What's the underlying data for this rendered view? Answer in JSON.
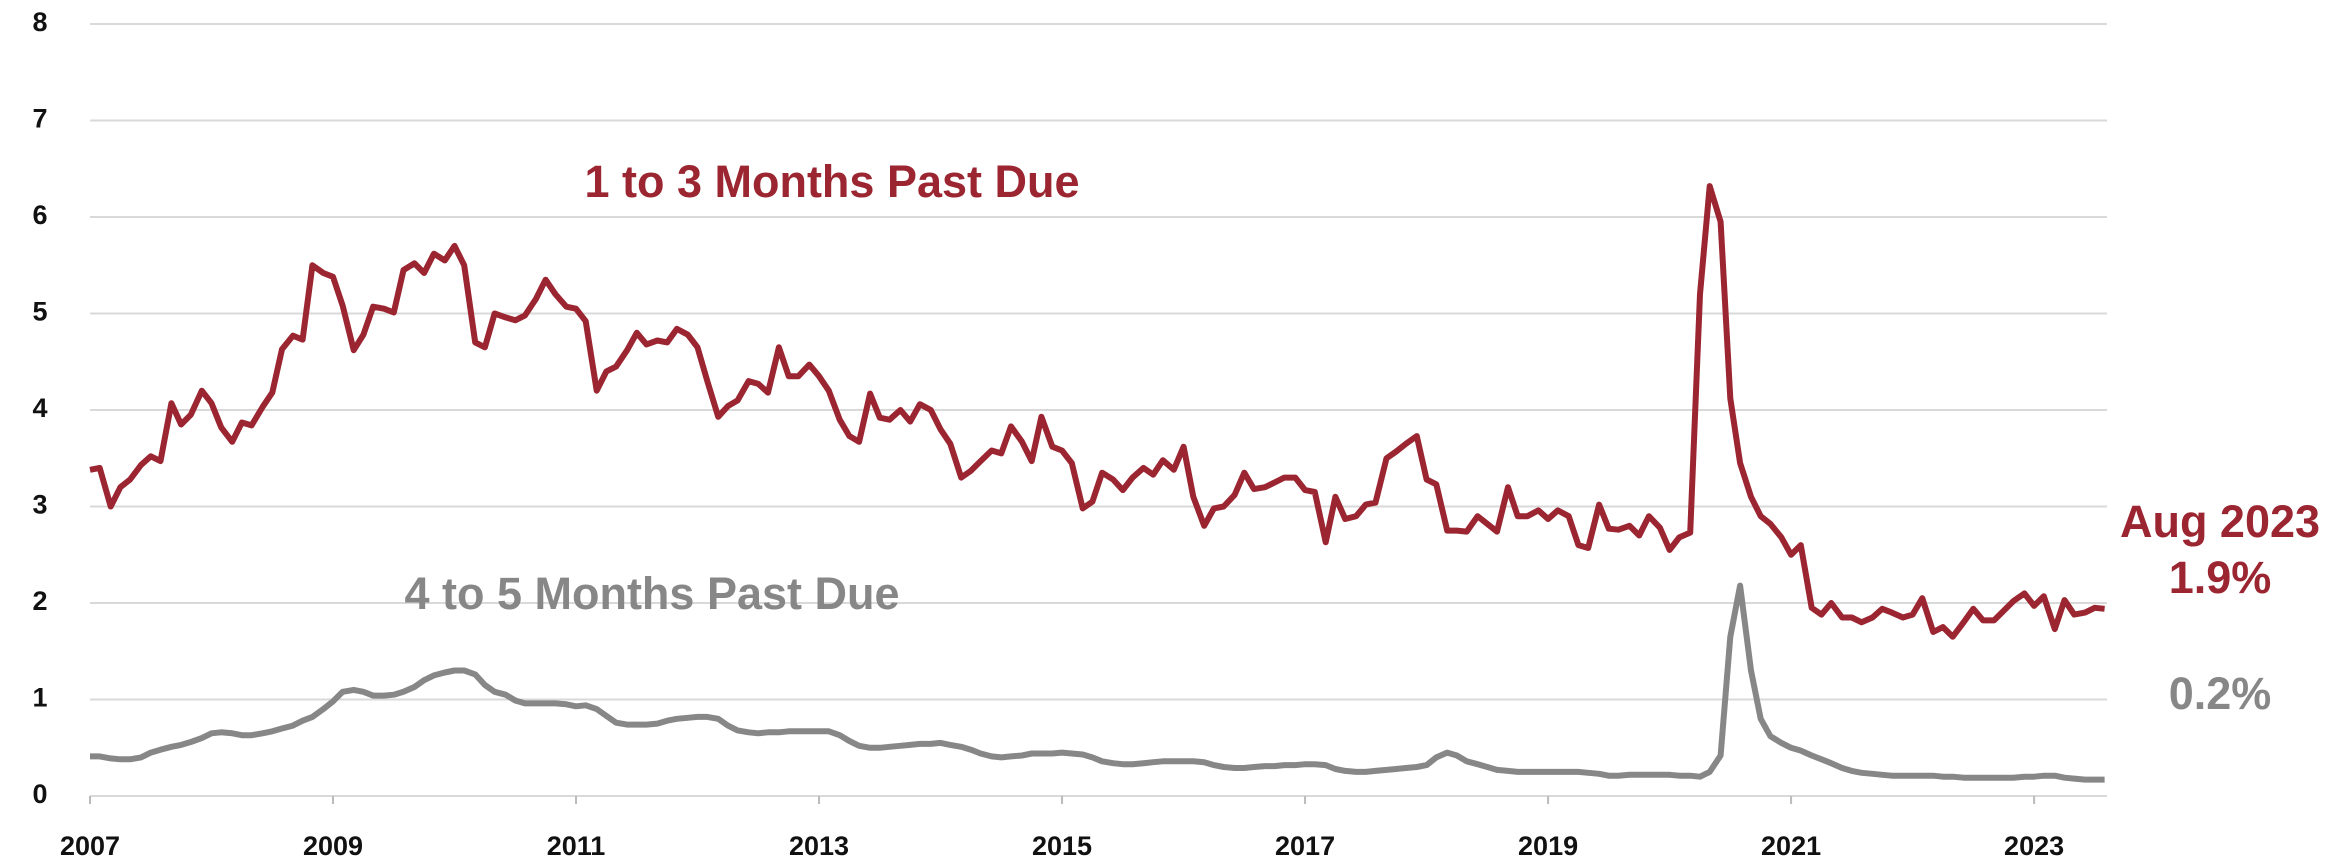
{
  "chart_data": {
    "type": "line",
    "xlim": [
      2007,
      2023.6
    ],
    "xticks": [
      2007,
      2009,
      2011,
      2013,
      2015,
      2017,
      2019,
      2021,
      2023
    ],
    "ylim": [
      0,
      8
    ],
    "yticks": [
      0,
      1,
      2,
      3,
      4,
      5,
      6,
      7,
      8
    ],
    "grid": true,
    "x": [
      2007.0,
      2007.08,
      2007.17,
      2007.25,
      2007.33,
      2007.42,
      2007.5,
      2007.58,
      2007.67,
      2007.75,
      2007.83,
      2007.92,
      2008.0,
      2008.08,
      2008.17,
      2008.25,
      2008.33,
      2008.42,
      2008.5,
      2008.58,
      2008.67,
      2008.75,
      2008.83,
      2008.92,
      2009.0,
      2009.08,
      2009.17,
      2009.25,
      2009.33,
      2009.42,
      2009.5,
      2009.58,
      2009.67,
      2009.75,
      2009.83,
      2009.92,
      2010.0,
      2010.08,
      2010.17,
      2010.25,
      2010.33,
      2010.42,
      2010.5,
      2010.58,
      2010.67,
      2010.75,
      2010.83,
      2010.92,
      2011.0,
      2011.08,
      2011.17,
      2011.25,
      2011.33,
      2011.42,
      2011.5,
      2011.58,
      2011.67,
      2011.75,
      2011.83,
      2011.92,
      2012.0,
      2012.08,
      2012.17,
      2012.25,
      2012.33,
      2012.42,
      2012.5,
      2012.58,
      2012.67,
      2012.75,
      2012.83,
      2012.92,
      2013.0,
      2013.08,
      2013.17,
      2013.25,
      2013.33,
      2013.42,
      2013.5,
      2013.58,
      2013.67,
      2013.75,
      2013.83,
      2013.92,
      2014.0,
      2014.08,
      2014.17,
      2014.25,
      2014.33,
      2014.42,
      2014.5,
      2014.58,
      2014.67,
      2014.75,
      2014.83,
      2014.92,
      2015.0,
      2015.08,
      2015.17,
      2015.25,
      2015.33,
      2015.42,
      2015.5,
      2015.58,
      2015.67,
      2015.75,
      2015.83,
      2015.92,
      2016.0,
      2016.08,
      2016.17,
      2016.25,
      2016.33,
      2016.42,
      2016.5,
      2016.58,
      2016.67,
      2016.75,
      2016.83,
      2016.92,
      2017.0,
      2017.08,
      2017.17,
      2017.25,
      2017.33,
      2017.42,
      2017.5,
      2017.58,
      2017.67,
      2017.75,
      2017.83,
      2017.92,
      2018.0,
      2018.08,
      2018.17,
      2018.25,
      2018.33,
      2018.42,
      2018.5,
      2018.58,
      2018.67,
      2018.75,
      2018.83,
      2018.92,
      2019.0,
      2019.08,
      2019.17,
      2019.25,
      2019.33,
      2019.42,
      2019.5,
      2019.58,
      2019.67,
      2019.75,
      2019.83,
      2019.92,
      2020.0,
      2020.08,
      2020.17,
      2020.25,
      2020.33,
      2020.42,
      2020.5,
      2020.58,
      2020.67,
      2020.75,
      2020.83,
      2020.92,
      2021.0,
      2021.08,
      2021.17,
      2021.25,
      2021.33,
      2021.42,
      2021.5,
      2021.58,
      2021.67,
      2021.75,
      2021.83,
      2021.92,
      2022.0,
      2022.08,
      2022.17,
      2022.25,
      2022.33,
      2022.42,
      2022.5,
      2022.58,
      2022.67,
      2022.75,
      2022.83,
      2022.92,
      2023.0,
      2023.08,
      2023.17,
      2023.25,
      2023.33,
      2023.42,
      2023.5,
      2023.58
    ],
    "series": [
      {
        "name": "1 to 3 Months Past Due",
        "color": "#9b2631",
        "values": [
          3.38,
          3.4,
          3.0,
          3.2,
          3.28,
          3.43,
          3.52,
          3.47,
          4.07,
          3.85,
          3.95,
          4.2,
          4.07,
          3.82,
          3.67,
          3.87,
          3.84,
          4.03,
          4.18,
          4.63,
          4.77,
          4.73,
          5.5,
          5.42,
          5.38,
          5.08,
          4.62,
          4.78,
          5.07,
          5.05,
          5.01,
          5.45,
          5.52,
          5.42,
          5.62,
          5.55,
          5.7,
          5.5,
          4.7,
          4.65,
          5.0,
          4.96,
          4.93,
          4.98,
          5.15,
          5.35,
          5.2,
          5.07,
          5.05,
          4.92,
          4.2,
          4.4,
          4.45,
          4.62,
          4.8,
          4.68,
          4.72,
          4.7,
          4.84,
          4.78,
          4.65,
          4.3,
          3.93,
          4.04,
          4.1,
          4.3,
          4.27,
          4.18,
          4.65,
          4.35,
          4.35,
          4.47,
          4.35,
          4.2,
          3.9,
          3.73,
          3.67,
          4.17,
          3.92,
          3.9,
          4.0,
          3.88,
          4.06,
          4.0,
          3.8,
          3.65,
          3.3,
          3.37,
          3.47,
          3.58,
          3.55,
          3.83,
          3.67,
          3.47,
          3.93,
          3.62,
          3.58,
          3.45,
          2.98,
          3.05,
          3.35,
          3.28,
          3.17,
          3.3,
          3.4,
          3.33,
          3.48,
          3.38,
          3.62,
          3.1,
          2.8,
          2.98,
          3.0,
          3.12,
          3.35,
          3.18,
          3.2,
          3.25,
          3.3,
          3.3,
          3.17,
          3.15,
          2.63,
          3.1,
          2.87,
          2.9,
          3.02,
          3.04,
          3.5,
          3.57,
          3.65,
          3.73,
          3.28,
          3.23,
          2.75,
          2.75,
          2.74,
          2.9,
          2.82,
          2.74,
          3.2,
          2.9,
          2.9,
          2.96,
          2.87,
          2.96,
          2.9,
          2.6,
          2.57,
          3.02,
          2.77,
          2.76,
          2.8,
          2.7,
          2.9,
          2.78,
          2.55,
          2.68,
          2.73,
          5.2,
          6.32,
          5.95,
          4.12,
          3.45,
          3.1,
          2.9,
          2.82,
          2.68,
          2.5,
          2.6,
          1.95,
          1.88,
          2.0,
          1.85,
          1.85,
          1.8,
          1.85,
          1.94,
          1.9,
          1.85,
          1.88,
          2.05,
          1.7,
          1.75,
          1.65,
          1.8,
          1.94,
          1.82,
          1.82,
          1.92,
          2.02,
          2.1,
          1.97,
          2.07,
          1.73,
          2.03,
          1.88,
          1.9,
          1.95,
          1.94
        ]
      },
      {
        "name": "4 to 5 Months Past Due",
        "color": "#878787",
        "values": [
          0.41,
          0.41,
          0.39,
          0.38,
          0.38,
          0.4,
          0.45,
          0.48,
          0.51,
          0.53,
          0.56,
          0.6,
          0.65,
          0.66,
          0.65,
          0.63,
          0.63,
          0.65,
          0.67,
          0.7,
          0.73,
          0.78,
          0.82,
          0.9,
          0.98,
          1.08,
          1.1,
          1.08,
          1.04,
          1.04,
          1.05,
          1.08,
          1.13,
          1.2,
          1.25,
          1.28,
          1.3,
          1.3,
          1.26,
          1.15,
          1.08,
          1.05,
          0.99,
          0.96,
          0.96,
          0.96,
          0.96,
          0.95,
          0.93,
          0.94,
          0.9,
          0.83,
          0.76,
          0.74,
          0.74,
          0.74,
          0.75,
          0.78,
          0.8,
          0.81,
          0.82,
          0.82,
          0.8,
          0.73,
          0.68,
          0.66,
          0.65,
          0.66,
          0.66,
          0.67,
          0.67,
          0.67,
          0.67,
          0.67,
          0.63,
          0.57,
          0.52,
          0.5,
          0.5,
          0.51,
          0.52,
          0.53,
          0.54,
          0.54,
          0.55,
          0.53,
          0.51,
          0.48,
          0.44,
          0.41,
          0.4,
          0.41,
          0.42,
          0.44,
          0.44,
          0.44,
          0.45,
          0.44,
          0.43,
          0.4,
          0.36,
          0.34,
          0.33,
          0.33,
          0.34,
          0.35,
          0.36,
          0.36,
          0.36,
          0.36,
          0.35,
          0.32,
          0.3,
          0.29,
          0.29,
          0.3,
          0.31,
          0.31,
          0.32,
          0.32,
          0.33,
          0.33,
          0.32,
          0.28,
          0.26,
          0.25,
          0.25,
          0.26,
          0.27,
          0.28,
          0.29,
          0.3,
          0.32,
          0.4,
          0.45,
          0.42,
          0.36,
          0.33,
          0.3,
          0.27,
          0.26,
          0.25,
          0.25,
          0.25,
          0.25,
          0.25,
          0.25,
          0.25,
          0.24,
          0.23,
          0.21,
          0.21,
          0.22,
          0.22,
          0.22,
          0.22,
          0.22,
          0.21,
          0.21,
          0.2,
          0.25,
          0.42,
          1.65,
          2.18,
          1.3,
          0.8,
          0.62,
          0.55,
          0.5,
          0.47,
          0.42,
          0.38,
          0.34,
          0.29,
          0.26,
          0.24,
          0.23,
          0.22,
          0.21,
          0.21,
          0.21,
          0.21,
          0.21,
          0.2,
          0.2,
          0.19,
          0.19,
          0.19,
          0.19,
          0.19,
          0.19,
          0.2,
          0.2,
          0.21,
          0.21,
          0.19,
          0.18,
          0.17,
          0.17,
          0.17
        ]
      }
    ],
    "annotations": [
      {
        "text": "1 to 3 Months Past Due",
        "color": "#9b2631"
      },
      {
        "text": "4 to 5 Months Past Due",
        "color": "#878787"
      },
      {
        "text": "Aug 2023",
        "color": "#9b2631"
      },
      {
        "text": "1.9%",
        "color": "#9b2631"
      },
      {
        "text": "0.2%",
        "color": "#878787"
      }
    ]
  }
}
